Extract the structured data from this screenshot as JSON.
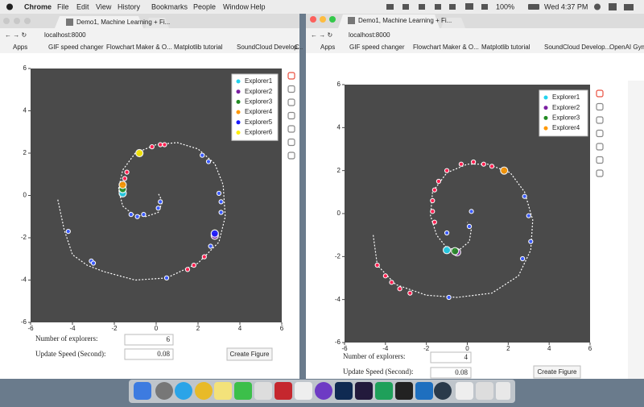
{
  "menu_bar": {
    "app": "Chrome",
    "items": [
      "File",
      "Edit",
      "View",
      "History",
      "Bookmarks",
      "People",
      "Window",
      "Help"
    ],
    "battery": "100%",
    "clock": "Wed 4:37 PM"
  },
  "windows": [
    {
      "tab_title": "Demo1, Machine Learning + Fi...",
      "address": "localhost:8000",
      "bookmarks": [
        "Apps",
        "GIF speed changer",
        "Flowchart Maker & O...",
        "Matplotlib tutorial",
        "SoundCloud Develop...",
        "C"
      ],
      "plot": {
        "type": "scatter",
        "xlim": [
          -6,
          6
        ],
        "ylim": [
          -6,
          6
        ],
        "xticks": [
          -6,
          -4,
          -2,
          0,
          2,
          4,
          6
        ],
        "yticks": [
          -6,
          -4,
          -2,
          0,
          2,
          4,
          6
        ],
        "curve": {
          "x": [
            -4.7,
            -4.4,
            -4,
            -3.3,
            -2.5,
            -1,
            0.5,
            2,
            3,
            3.3,
            3.2,
            2.8,
            2,
            1,
            0,
            -1,
            -1.6,
            -1.8,
            -1.6,
            -1.1,
            -0.5,
            0.1,
            0.3,
            0.1
          ],
          "y": [
            -0.2,
            -1.6,
            -2.8,
            -3.3,
            -3.6,
            -4,
            -3.9,
            -3.2,
            -2.2,
            -1,
            0.5,
            1.5,
            2.2,
            2.5,
            2.4,
            2,
            1.2,
            0.3,
            -0.5,
            -0.9,
            -1,
            -0.8,
            -0.3,
            0.1
          ]
        },
        "track": {
          "x": [
            -4.2,
            -3.1,
            -3,
            0.5,
            1.5,
            1.8,
            2.3,
            2.6,
            3.1,
            3.1,
            3,
            2.5,
            2.2,
            0.2,
            0.4,
            -0.2,
            -1.4,
            -1.5,
            -1.2,
            -0.9,
            -0.6,
            0.1,
            0.2
          ],
          "y": [
            -1.7,
            -3.1,
            -3.2,
            -3.9,
            -3.5,
            -3.3,
            -2.9,
            -2.4,
            -0.8,
            -0.3,
            0.1,
            1.6,
            1.9,
            2.4,
            2.4,
            2.3,
            1.1,
            0.8,
            -0.9,
            -1,
            -0.9,
            -0.6,
            -0.3
          ],
          "color": [
            "#3b5bfd",
            "#3b5bfd",
            "#3b5bfd",
            "#3b5bfd",
            "#ff2050",
            "#ff2050",
            "#ff2050",
            "#3b5bfd",
            "#3b5bfd",
            "#3b5bfd",
            "#3b5bfd",
            "#3b5bfd",
            "#3b5bfd",
            "#ff2050",
            "#ff2050",
            "#ff2050",
            "#ff2050",
            "#ff2050",
            "#3b5bfd",
            "#3b5bfd",
            "#3b5bfd",
            "#3b5bfd",
            "#3b5bfd"
          ]
        },
        "series": [
          {
            "name": "Explorer1",
            "color": "#22d3ee",
            "x": [
              -1.6
            ],
            "y": [
              0.1
            ]
          },
          {
            "name": "Explorer2",
            "color": "#7b1fa2",
            "x": [
              2.8
            ],
            "y": [
              -1.9
            ]
          },
          {
            "name": "Explorer3",
            "color": "#228b22",
            "x": [
              -1.6
            ],
            "y": [
              0.3
            ]
          },
          {
            "name": "Explorer4",
            "color": "#ff9800",
            "x": [
              -1.6
            ],
            "y": [
              0.5
            ]
          },
          {
            "name": "Explorer5",
            "color": "#1a1aff",
            "x": [
              2.8
            ],
            "y": [
              -1.8
            ]
          },
          {
            "name": "Explorer6",
            "color": "#ffee00",
            "x": [
              -0.8
            ],
            "y": [
              2
            ]
          }
        ]
      },
      "controls": {
        "explorers_label": "Number of explorers:",
        "explorers_value": "6",
        "speed_label": "Update Speed (Second):",
        "speed_value": "0.08",
        "button": "Create Figure"
      }
    },
    {
      "tab_title": "Demo1, Machine Learning + Fi...",
      "address": "localhost:8000",
      "bookmarks": [
        "Apps",
        "GIF speed changer",
        "Flowchart Maker & O...",
        "Matplotlib tutorial",
        "SoundCloud Develop...",
        "OpenAI Gym"
      ],
      "plot": {
        "type": "scatter",
        "xlim": [
          -6,
          6
        ],
        "ylim": [
          -6,
          6
        ],
        "xticks": [
          -6,
          -4,
          -2,
          0,
          2,
          4,
          6
        ],
        "yticks": [
          -6,
          -4,
          -2,
          0,
          2,
          4,
          6
        ],
        "curve": {
          "x": [
            -4.6,
            -4.4,
            -3.5,
            -2,
            -0.5,
            1.2,
            2.5,
            3.1,
            3.2,
            2.8,
            2.1,
            1,
            0,
            -1,
            -1.7,
            -1.8,
            -1.5,
            -1,
            -0.4,
            0.1,
            0.2,
            0
          ],
          "y": [
            -1,
            -2.4,
            -3.3,
            -3.8,
            -3.9,
            -3.7,
            -2.9,
            -1.7,
            -0.3,
            1,
            1.9,
            2.3,
            2.3,
            1.9,
            1,
            -0.1,
            -1,
            -1.6,
            -1.7,
            -1.3,
            -0.7,
            -0.4
          ]
        },
        "track": {
          "x": [
            -4.4,
            -4,
            -3.7,
            -3.3,
            -2.8,
            -0.9,
            2.7,
            3.1,
            3,
            2.8,
            1.2,
            0.8,
            0.3,
            -0.3,
            -1,
            -1.4,
            -1.6,
            -1.7,
            -1.7,
            -1.6,
            -1,
            0.2,
            0.1
          ],
          "y": [
            -2.4,
            -2.9,
            -3.2,
            -3.5,
            -3.7,
            -3.9,
            -2.1,
            -1.3,
            -0.1,
            0.8,
            2.2,
            2.3,
            2.4,
            2.3,
            2,
            1.5,
            1.1,
            0.6,
            0.1,
            -0.4,
            -0.9,
            0.1,
            -0.6
          ],
          "color": [
            "#ff2050",
            "#ff2050",
            "#ff2050",
            "#ff2050",
            "#ff2050",
            "#3b5bfd",
            "#3b5bfd",
            "#3b5bfd",
            "#3b5bfd",
            "#3b5bfd",
            "#ff2050",
            "#ff2050",
            "#ff2050",
            "#ff2050",
            "#ff2050",
            "#ff2050",
            "#ff2050",
            "#ff2050",
            "#ff2050",
            "#ff2050",
            "#3b5bfd",
            "#3b5bfd",
            "#3b5bfd"
          ]
        },
        "series": [
          {
            "name": "Explorer1",
            "color": "#22d3ee",
            "x": [
              -1
            ],
            "y": [
              -1.7
            ]
          },
          {
            "name": "Explorer2",
            "color": "#7b1fa2",
            "x": [
              -0.5
            ],
            "y": [
              -1.8
            ]
          },
          {
            "name": "Explorer3",
            "color": "#228b22",
            "x": [
              -0.6
            ],
            "y": [
              -1.75
            ]
          },
          {
            "name": "Explorer4",
            "color": "#ff9800",
            "x": [
              1.8
            ],
            "y": [
              2
            ]
          }
        ]
      },
      "controls": {
        "explorers_label": "Number of explorers:",
        "explorers_value": "4",
        "speed_label": "Update Speed (Second):",
        "speed_value": "0.08",
        "button": "Create Figure"
      }
    }
  ]
}
